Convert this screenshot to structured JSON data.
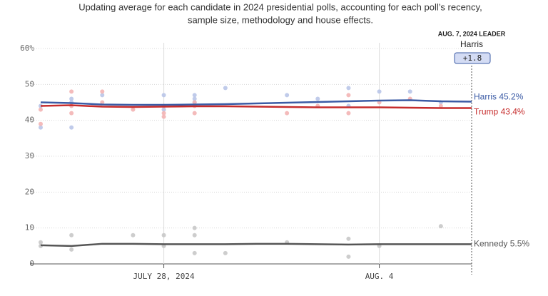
{
  "chart_data": {
    "type": "line",
    "title": [
      "Updating average for each candidate in 2024 presidential polls, accounting for each poll’s recency,",
      "sample size, methodology and house effects."
    ],
    "x": [
      "2024-07-24",
      "2024-07-25",
      "2024-07-26",
      "2024-07-27",
      "2024-07-28",
      "2024-07-29",
      "2024-07-30",
      "2024-07-31",
      "2024-08-01",
      "2024-08-02",
      "2024-08-03",
      "2024-08-04",
      "2024-08-05",
      "2024-08-06",
      "2024-08-07"
    ],
    "xlim": [
      "2024-07-24",
      "2024-08-07"
    ],
    "xticks": [
      {
        "value": "2024-07-28",
        "label": "JULY 28, 2024"
      },
      {
        "value": "2024-08-04",
        "label": "AUG. 4"
      }
    ],
    "ylim": [
      0,
      60
    ],
    "yticks": [
      0,
      10,
      20,
      30,
      40,
      50,
      {
        "value": 60,
        "label": "60%"
      }
    ],
    "grid": true,
    "series": [
      {
        "name": "Harris",
        "color": "#3b5ba5",
        "poll_color": "#b9c5e8",
        "end_label": "45.2%",
        "values": [
          45.0,
          44.8,
          44.4,
          44.3,
          44.3,
          44.4,
          44.5,
          44.7,
          44.9,
          45.1,
          45.3,
          45.5,
          45.6,
          45.3,
          45.2
        ],
        "polls": {
          "x": [
            "2024-07-24",
            "2024-07-24",
            "2024-07-25",
            "2024-07-25",
            "2024-07-25",
            "2024-07-26",
            "2024-07-28",
            "2024-07-28",
            "2024-07-28",
            "2024-07-29",
            "2024-07-29",
            "2024-07-29",
            "2024-07-30",
            "2024-08-01",
            "2024-08-02",
            "2024-08-03",
            "2024-08-03",
            "2024-08-04",
            "2024-08-05",
            "2024-08-06"
          ],
          "values": [
            44,
            38,
            45,
            46,
            38,
            47,
            47,
            43,
            44,
            46,
            47,
            45,
            49,
            47,
            46,
            49,
            44,
            48,
            48,
            45
          ]
        }
      },
      {
        "name": "Trump",
        "color": "#c62c2c",
        "poll_color": "#f3b4b4",
        "end_label": "43.4%",
        "values": [
          44.0,
          44.2,
          43.8,
          43.7,
          43.8,
          43.9,
          43.9,
          43.8,
          43.7,
          43.6,
          43.6,
          43.6,
          43.5,
          43.4,
          43.4
        ],
        "polls": {
          "x": [
            "2024-07-24",
            "2024-07-24",
            "2024-07-25",
            "2024-07-25",
            "2024-07-25",
            "2024-07-26",
            "2024-07-26",
            "2024-07-27",
            "2024-07-28",
            "2024-07-28",
            "2024-07-28",
            "2024-07-29",
            "2024-07-29",
            "2024-07-29",
            "2024-08-01",
            "2024-08-02",
            "2024-08-03",
            "2024-08-03",
            "2024-08-04",
            "2024-08-05",
            "2024-08-06"
          ],
          "values": [
            43,
            39,
            48,
            42,
            44,
            48,
            45,
            43,
            41,
            42,
            44,
            42,
            45,
            44,
            42,
            44,
            47,
            42,
            45,
            46,
            44
          ]
        }
      },
      {
        "name": "Kennedy",
        "color": "#555555",
        "poll_color": "#c8c8c8",
        "end_label": "5.5%",
        "values": [
          5.2,
          5.0,
          5.6,
          5.6,
          5.5,
          5.5,
          5.5,
          5.6,
          5.6,
          5.5,
          5.4,
          5.5,
          5.5,
          5.5,
          5.5
        ],
        "polls": {
          "x": [
            "2024-07-24",
            "2024-07-24",
            "2024-07-25",
            "2024-07-25",
            "2024-07-27",
            "2024-07-28",
            "2024-07-28",
            "2024-07-29",
            "2024-07-29",
            "2024-07-29",
            "2024-07-30",
            "2024-08-01",
            "2024-08-03",
            "2024-08-03",
            "2024-08-04",
            "2024-08-06"
          ],
          "values": [
            6,
            5,
            8,
            4,
            8,
            8,
            5,
            10,
            8,
            3,
            3,
            6,
            7,
            2,
            5,
            10.5
          ]
        }
      }
    ],
    "annotation": {
      "title": "AUG. 7, 2024 LEADER",
      "leader": "Harris",
      "margin_label": "+1.8"
    }
  }
}
